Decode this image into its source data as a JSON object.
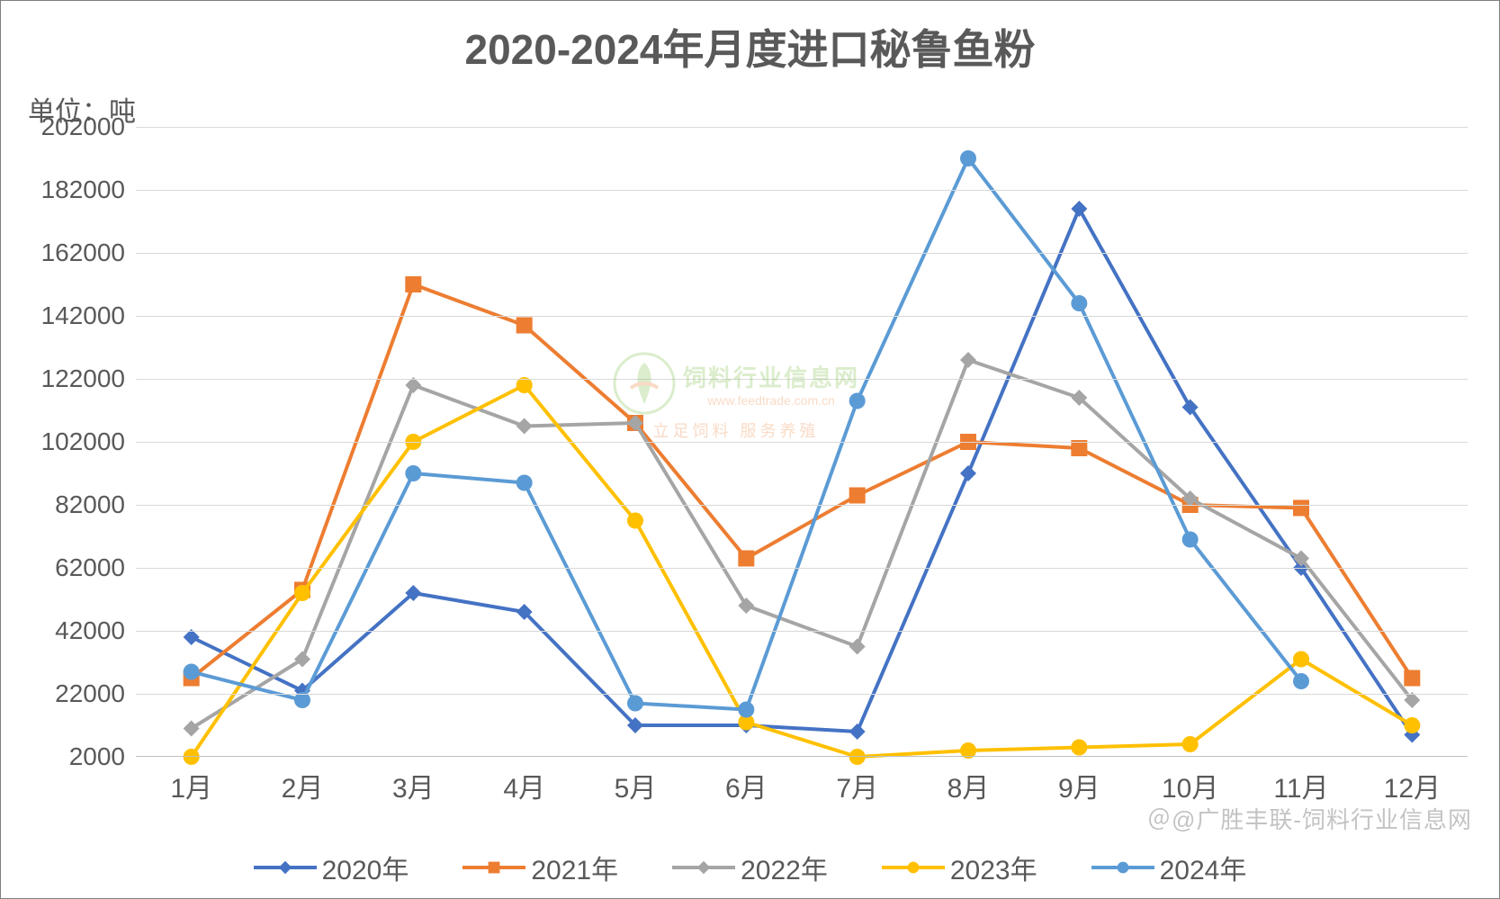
{
  "chart": {
    "type": "line",
    "title": "2020-2024年月度进口秘鲁鱼粉",
    "unit_label": "单位：吨",
    "title_fontsize": 46,
    "title_color": "#595959",
    "label_fontsize": 30,
    "label_color": "#595959",
    "background_color": "#ffffff",
    "grid_color": "#d9d9d9",
    "axis_color": "#bfbfbf",
    "line_width": 4,
    "marker_size": 9,
    "ylim": [
      2000,
      202000
    ],
    "ytick_step": 20000,
    "yticks": [
      2000,
      22000,
      42000,
      62000,
      82000,
      102000,
      122000,
      142000,
      162000,
      182000,
      202000
    ],
    "categories": [
      "1月",
      "2月",
      "3月",
      "4月",
      "5月",
      "6月",
      "7月",
      "8月",
      "9月",
      "10月",
      "11月",
      "12月"
    ],
    "series": [
      {
        "name": "2020年",
        "color": "#4472c4",
        "marker": "diamond",
        "values": [
          40000,
          23000,
          54000,
          48000,
          12000,
          12000,
          10000,
          92000,
          176000,
          113000,
          62000,
          9000
        ]
      },
      {
        "name": "2021年",
        "color": "#ed7d31",
        "marker": "square",
        "values": [
          27000,
          55000,
          152000,
          139000,
          108000,
          65000,
          85000,
          102000,
          100000,
          82000,
          81000,
          27000
        ]
      },
      {
        "name": "2022年",
        "color": "#a5a5a5",
        "marker": "diamond",
        "values": [
          11000,
          33000,
          120000,
          107000,
          108000,
          50000,
          37000,
          128000,
          116000,
          84000,
          65000,
          20000
        ]
      },
      {
        "name": "2023年",
        "color": "#ffc000",
        "marker": "circle",
        "values": [
          2000,
          54000,
          102000,
          120000,
          77000,
          13000,
          2000,
          4000,
          5000,
          6000,
          33000,
          12000
        ]
      },
      {
        "name": "2024年",
        "color": "#5b9bd5",
        "marker": "circle",
        "values": [
          29000,
          20000,
          92000,
          89000,
          19000,
          17000,
          115000,
          192000,
          146000,
          71000,
          26000,
          null
        ]
      }
    ],
    "legend_position": "bottom"
  },
  "watermark": {
    "logo_text_top": "饲料行业信息网",
    "logo_text_url": "www.feedtrade.com.cn",
    "logo_text_sub": "立足饲料   服务养殖",
    "footer": "＠@广胜丰联-饲料行业信息网"
  }
}
